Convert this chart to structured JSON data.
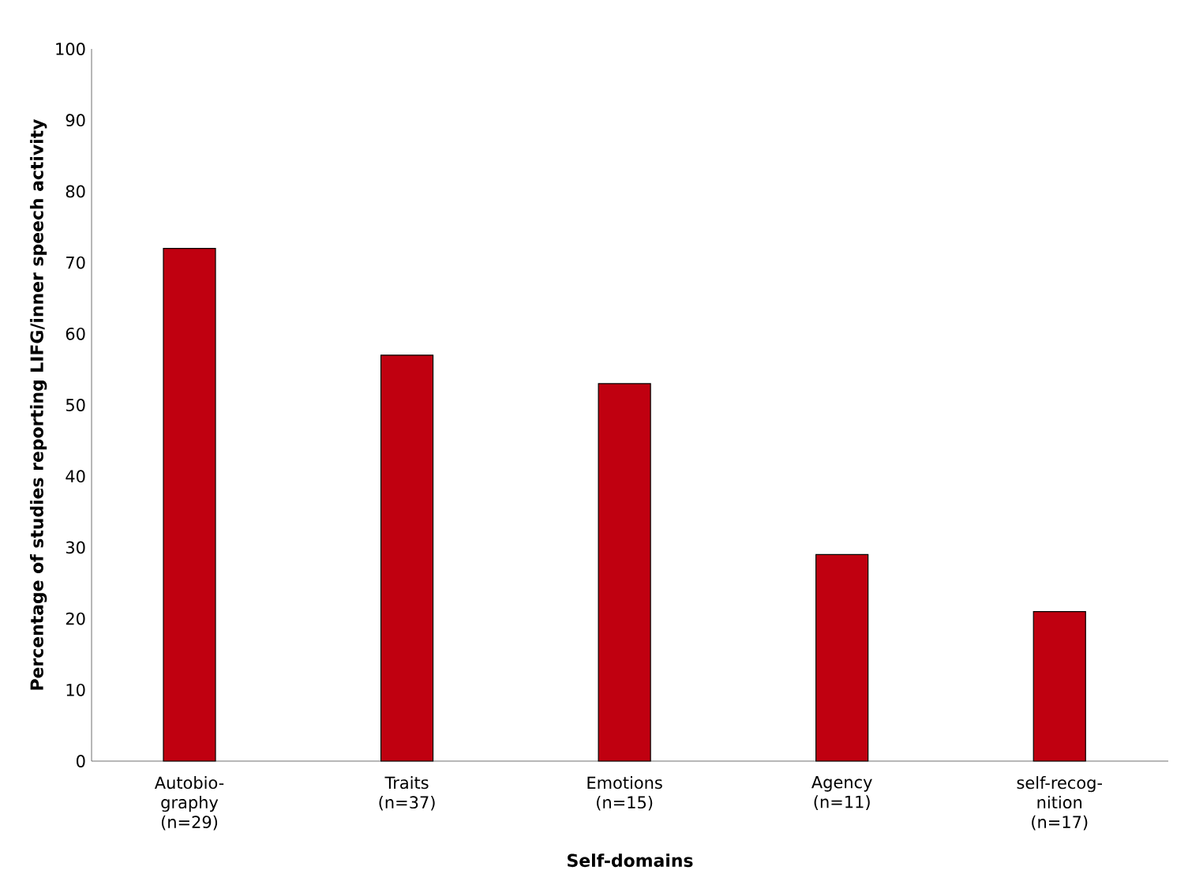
{
  "chart_data": {
    "type": "bar",
    "xlabel": "Self-domains",
    "ylabel": "Percentage of studies reporting LIFG/inner speech activity",
    "categories": [
      "Autobio-graphy (n=29)",
      "Traits (n=37)",
      "Emotions (n=15)",
      "Agency (n=11)",
      "self-recog-nition (n=17)"
    ],
    "values": [
      72,
      57,
      53,
      29,
      21
    ],
    "color": "#c00010",
    "ylim": [
      0,
      100
    ],
    "yticks": [
      0,
      10,
      20,
      30,
      40,
      50,
      60,
      70,
      80,
      90,
      100
    ],
    "grid": false
  }
}
